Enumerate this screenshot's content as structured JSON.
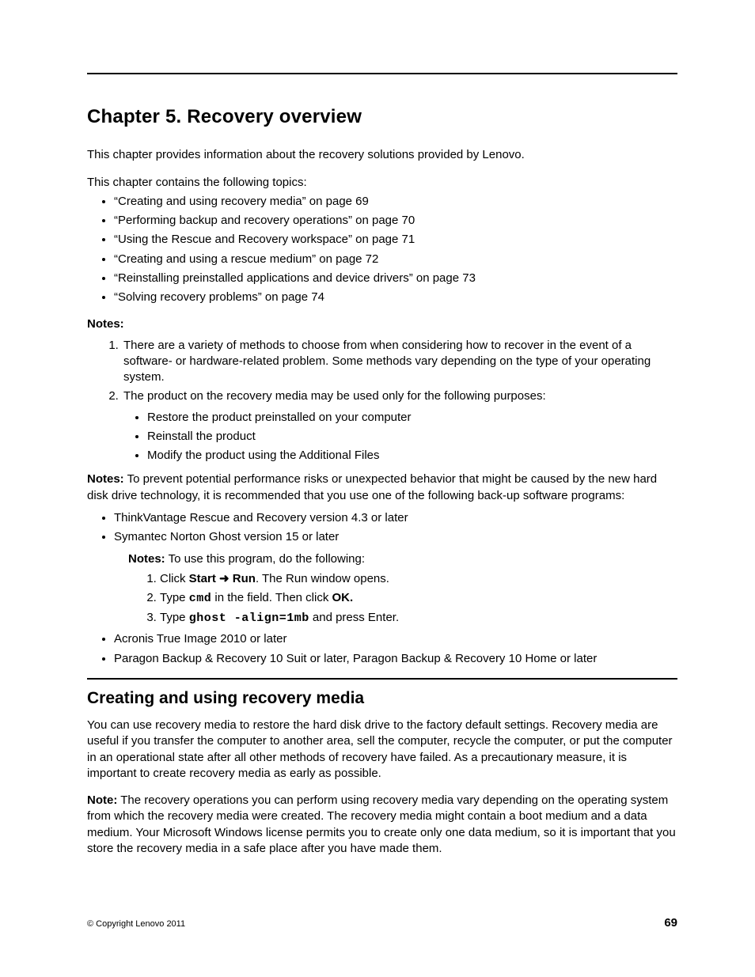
{
  "chapter_title": "Chapter 5.   Recovery overview",
  "intro1": "This chapter provides information about the recovery solutions provided by Lenovo.",
  "intro2": "This chapter contains the following topics:",
  "topics": [
    "“Creating and using recovery media” on page 69",
    "“Performing backup and recovery operations” on page 70",
    "“Using the Rescue and Recovery workspace” on page 71",
    "“Creating and using a rescue medium” on page 72",
    "“Reinstalling preinstalled applications and device drivers” on page 73",
    "“Solving recovery problems” on page 74"
  ],
  "notes_label": "Notes:",
  "note1": "There are a variety of methods to choose from when considering how to recover in the event of a software- or hardware-related problem.  Some methods vary depending on the type of your operating system.",
  "note2_lead": "The product on the recovery media may be used only for the following purposes:",
  "note2_sub": [
    "Restore the product preinstalled on your computer",
    "Reinstall the product",
    "Modify the product using the Additional Files"
  ],
  "notes2_prefix": "Notes:",
  "notes2_body": " To prevent potential performance risks or unexpected behavior that might be caused by the new hard disk drive technology, it is recommended that you use one of the following back-up software programs:",
  "backup_items": {
    "b1": "ThinkVantage Rescue and Recovery version 4.3 or later",
    "b2": "Symantec Norton Ghost version 15 or later",
    "b2_inner_notes_prefix": "Notes:",
    "b2_inner_notes_body": " To use this program, do the following:",
    "b2_step1_pre": "Click ",
    "b2_step1_start": "Start",
    "b2_step1_arrow": " ➜ ",
    "b2_step1_run": "Run",
    "b2_step1_post": ".  The Run window opens.",
    "b2_step2_pre": "Type ",
    "b2_step2_cmd": "cmd",
    "b2_step2_mid": " in the field.  Then click ",
    "b2_step2_ok": "OK.",
    "b2_step3_pre": "Type ",
    "b2_step3_cmd": "ghost -align=1mb",
    "b2_step3_post": " and press Enter.",
    "b3": "Acronis True Image 2010 or later",
    "b4": "Paragon Backup & Recovery 10 Suit or later, Paragon Backup & Recovery 10 Home or later"
  },
  "section_title": "Creating and using recovery media",
  "section_p1": "You can use recovery media to restore the hard disk drive to the factory default settings.  Recovery media are useful if you transfer the computer to another area, sell the computer, recycle the computer, or put the computer in an operational state after all other methods of recovery have failed.  As a precautionary measure, it is important to create recovery media as early as possible.",
  "section_note_prefix": "Note:",
  "section_note_body": " The recovery operations you can perform using recovery media vary depending on the operating system from which the recovery media were created.  The recovery media might contain a boot medium and a data medium.  Your Microsoft Windows license permits you to create only one data medium, so it is important that you store the recovery media in a safe place after you have made them.",
  "footer_copyright": "© Copyright Lenovo 2011",
  "footer_page": "69"
}
